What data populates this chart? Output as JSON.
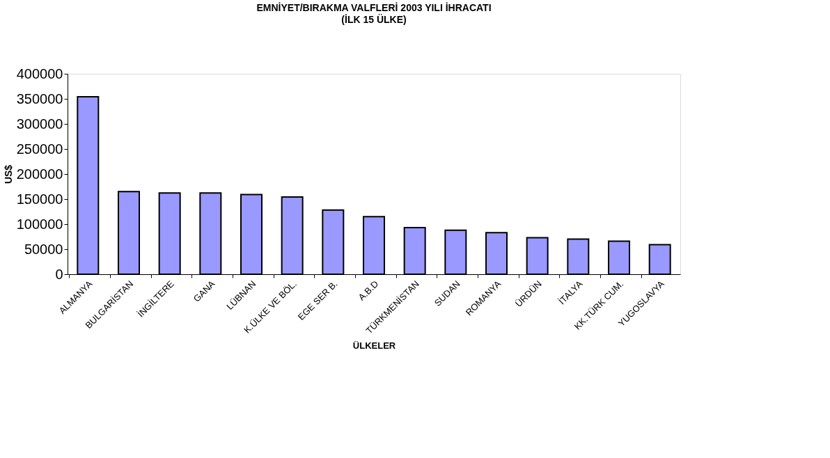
{
  "chart_data": {
    "type": "bar",
    "title": "EMNİYET/BIRAKMA VALFLERİ 2003 YILI İHRACATI",
    "subtitle": "(İLK 15 ÜLKE)",
    "xlabel": "ÜLKELER",
    "ylabel": "US$",
    "categories": [
      "ALMANYA",
      "BULGARİSTAN",
      "İNGİLTERE",
      "GANA",
      "LÜBNAN",
      "K.ÜLKE VE BÖL.",
      "EGE SER B.",
      "A.B.D",
      "TÜRKMENİSTAN",
      "SUDAN",
      "ROMANYA",
      "ÜRDÜN",
      "İTALYA",
      "KK.TÜRK CUM.",
      "YUGOSLAVYA"
    ],
    "values": [
      354000,
      165000,
      162000,
      162000,
      159000,
      154000,
      128000,
      115000,
      93000,
      88000,
      83000,
      73000,
      70000,
      66000,
      59000
    ],
    "color": "#9999ff",
    "ylim": [
      0,
      400000
    ],
    "yticks": [
      0,
      50000,
      100000,
      150000,
      200000,
      250000,
      300000,
      350000,
      400000
    ],
    "grid": false
  }
}
